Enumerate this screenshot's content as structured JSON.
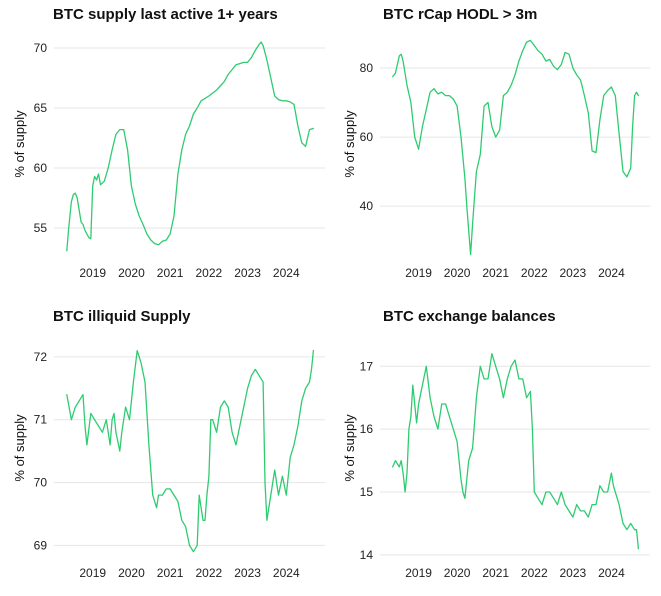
{
  "accent_color": "#2ecc71",
  "chart_data": [
    {
      "type": "line",
      "title": "BTC supply last active 1+ years",
      "ylabel": "% of supply",
      "xlim": [
        2018.0,
        2025.0
      ],
      "ylim": [
        52.5,
        71.5
      ],
      "yticks": [
        55,
        60,
        65,
        70
      ],
      "ytick_labels": [
        "55",
        "60",
        "65",
        "70"
      ],
      "xticks": [
        2019,
        2020,
        2021,
        2022,
        2023,
        2024
      ],
      "xtick_labels": [
        "2019",
        "2020",
        "2021",
        "2022",
        "2023",
        "2024"
      ],
      "series": [
        {
          "color": "#2ecc71",
          "x": [
            2018.33,
            2018.38,
            2018.45,
            2018.5,
            2018.55,
            2018.6,
            2018.7,
            2018.75,
            2018.8,
            2018.85,
            2018.9,
            2018.95,
            2019.0,
            2019.05,
            2019.1,
            2019.15,
            2019.2,
            2019.3,
            2019.4,
            2019.5,
            2019.6,
            2019.7,
            2019.8,
            2019.9,
            2020.0,
            2020.1,
            2020.2,
            2020.3,
            2020.4,
            2020.5,
            2020.6,
            2020.7,
            2020.8,
            2020.9,
            2021.0,
            2021.1,
            2021.2,
            2021.3,
            2021.4,
            2021.5,
            2021.6,
            2021.7,
            2021.8,
            2021.9,
            2022.0,
            2022.2,
            2022.4,
            2022.5,
            2022.6,
            2022.7,
            2022.8,
            2022.9,
            2023.0,
            2023.1,
            2023.2,
            2023.3,
            2023.35,
            2023.4,
            2023.5,
            2023.6,
            2023.7,
            2023.8,
            2023.9,
            2024.0,
            2024.1,
            2024.2,
            2024.3,
            2024.4,
            2024.5,
            2024.6,
            2024.7
          ],
          "y": [
            53.1,
            55.0,
            57.2,
            57.8,
            57.9,
            57.5,
            55.5,
            55.3,
            54.8,
            54.5,
            54.2,
            54.1,
            58.5,
            59.3,
            59.0,
            59.5,
            58.6,
            58.9,
            60.0,
            61.5,
            62.8,
            63.2,
            63.2,
            61.5,
            58.5,
            57.0,
            56.0,
            55.3,
            54.5,
            54.0,
            53.7,
            53.6,
            53.9,
            54.0,
            54.5,
            56.0,
            59.5,
            61.5,
            62.8,
            63.5,
            64.5,
            65.0,
            65.6,
            65.8,
            66.0,
            66.5,
            67.2,
            67.8,
            68.2,
            68.6,
            68.7,
            68.8,
            68.8,
            69.2,
            69.8,
            70.3,
            70.5,
            70.2,
            69.0,
            67.5,
            66.0,
            65.7,
            65.6,
            65.6,
            65.5,
            65.3,
            63.5,
            62.1,
            61.8,
            63.2,
            63.3
          ]
        }
      ]
    },
    {
      "type": "line",
      "title": "BTC rCap HODL > 3m",
      "ylabel": "% of supply",
      "xlim": [
        2018.0,
        2025.0
      ],
      "ylim": [
        25.0,
        91.0
      ],
      "yticks": [
        40,
        60,
        80
      ],
      "ytick_labels": [
        "40",
        "60",
        "80"
      ],
      "xticks": [
        2019,
        2020,
        2021,
        2022,
        2023,
        2024
      ],
      "xtick_labels": [
        "2019",
        "2020",
        "2021",
        "2022",
        "2023",
        "2024"
      ],
      "series": [
        {
          "color": "#2ecc71",
          "x": [
            2018.33,
            2018.4,
            2018.5,
            2018.55,
            2018.6,
            2018.7,
            2018.8,
            2018.9,
            2019.0,
            2019.1,
            2019.2,
            2019.3,
            2019.4,
            2019.5,
            2019.6,
            2019.7,
            2019.8,
            2019.9,
            2020.0,
            2020.1,
            2020.2,
            2020.25,
            2020.3,
            2020.35,
            2020.4,
            2020.5,
            2020.6,
            2020.7,
            2020.8,
            2020.9,
            2021.0,
            2021.1,
            2021.2,
            2021.3,
            2021.4,
            2021.5,
            2021.6,
            2021.7,
            2021.8,
            2021.9,
            2022.0,
            2022.1,
            2022.2,
            2022.3,
            2022.4,
            2022.5,
            2022.6,
            2022.7,
            2022.8,
            2022.9,
            2023.0,
            2023.1,
            2023.2,
            2023.3,
            2023.4,
            2023.5,
            2023.6,
            2023.7,
            2023.8,
            2023.9,
            2024.0,
            2024.1,
            2024.2,
            2024.3,
            2024.4,
            2024.5,
            2024.55,
            2024.6,
            2024.65,
            2024.7
          ],
          "y": [
            77.5,
            78.5,
            83.5,
            84.0,
            82.0,
            75.0,
            70.0,
            60.0,
            56.5,
            63.0,
            68.0,
            73.0,
            74.0,
            72.5,
            73.0,
            72.0,
            72.0,
            71.0,
            69.0,
            60.0,
            48.0,
            40.0,
            33.0,
            26.0,
            35.0,
            50.0,
            55.0,
            69.0,
            70.0,
            63.0,
            60.0,
            62.0,
            72.0,
            73.0,
            75.0,
            78.0,
            82.0,
            85.0,
            87.5,
            88.0,
            86.5,
            85.0,
            84.0,
            82.0,
            82.5,
            80.5,
            79.5,
            81.0,
            84.5,
            84.0,
            80.0,
            78.0,
            76.5,
            72.0,
            67.0,
            56.0,
            55.5,
            65.0,
            72.0,
            73.5,
            74.5,
            72.0,
            61.0,
            50.0,
            48.5,
            51.0,
            63.0,
            72.0,
            73.0,
            72.0
          ]
        }
      ]
    },
    {
      "type": "line",
      "title": "BTC illiquid Supply",
      "ylabel": "% of supply",
      "xlim": [
        2018.0,
        2025.0
      ],
      "ylim": [
        68.8,
        72.3
      ],
      "yticks": [
        69,
        70,
        71,
        72
      ],
      "ytick_labels": [
        "69",
        "70",
        "71",
        "72"
      ],
      "xticks": [
        2019,
        2020,
        2021,
        2022,
        2023,
        2024
      ],
      "xtick_labels": [
        "2019",
        "2020",
        "2021",
        "2022",
        "2023",
        "2024"
      ],
      "series": [
        {
          "color": "#2ecc71",
          "x": [
            2018.33,
            2018.45,
            2018.55,
            2018.65,
            2018.75,
            2018.8,
            2018.85,
            2018.95,
            2019.05,
            2019.15,
            2019.25,
            2019.35,
            2019.45,
            2019.5,
            2019.55,
            2019.6,
            2019.7,
            2019.75,
            2019.85,
            2019.95,
            2020.05,
            2020.15,
            2020.25,
            2020.35,
            2020.45,
            2020.55,
            2020.65,
            2020.7,
            2020.8,
            2020.9,
            2021.0,
            2021.1,
            2021.2,
            2021.3,
            2021.4,
            2021.5,
            2021.6,
            2021.7,
            2021.75,
            2021.8,
            2021.85,
            2021.9,
            2021.95,
            2022.0,
            2022.05,
            2022.1,
            2022.2,
            2022.3,
            2022.4,
            2022.5,
            2022.6,
            2022.7,
            2022.8,
            2022.9,
            2023.0,
            2023.1,
            2023.2,
            2023.3,
            2023.4,
            2023.45,
            2023.5,
            2023.6,
            2023.7,
            2023.8,
            2023.9,
            2024.0,
            2024.1,
            2024.2,
            2024.3,
            2024.4,
            2024.5,
            2024.6,
            2024.65,
            2024.7
          ],
          "y": [
            71.4,
            71.0,
            71.2,
            71.3,
            71.4,
            70.9,
            70.6,
            71.1,
            71.0,
            70.9,
            70.8,
            71.0,
            70.6,
            71.0,
            71.1,
            70.8,
            70.5,
            70.8,
            71.2,
            71.0,
            71.6,
            72.1,
            71.9,
            71.6,
            70.6,
            69.8,
            69.6,
            69.8,
            69.8,
            69.9,
            69.9,
            69.8,
            69.7,
            69.4,
            69.3,
            69.0,
            68.9,
            69.0,
            69.8,
            69.6,
            69.4,
            69.4,
            69.8,
            70.1,
            71.0,
            71.0,
            70.8,
            71.2,
            71.3,
            71.2,
            70.8,
            70.6,
            70.9,
            71.2,
            71.5,
            71.7,
            71.8,
            71.7,
            71.6,
            70.0,
            69.4,
            69.8,
            70.2,
            69.8,
            70.1,
            69.8,
            70.4,
            70.6,
            70.9,
            71.3,
            71.5,
            71.6,
            71.8,
            72.1
          ]
        }
      ]
    },
    {
      "type": "line",
      "title": "BTC exchange balances",
      "ylabel": "% of supply",
      "xlim": [
        2018.0,
        2025.0
      ],
      "ylim": [
        13.95,
        17.45
      ],
      "yticks": [
        14,
        15,
        16,
        17
      ],
      "ytick_labels": [
        "14",
        "15",
        "16",
        "17"
      ],
      "xticks": [
        2019,
        2020,
        2021,
        2022,
        2023,
        2024
      ],
      "xtick_labels": [
        "2019",
        "2020",
        "2021",
        "2022",
        "2023",
        "2024"
      ],
      "series": [
        {
          "color": "#2ecc71",
          "x": [
            2018.33,
            2018.4,
            2018.5,
            2018.55,
            2018.6,
            2018.65,
            2018.7,
            2018.75,
            2018.8,
            2018.85,
            2018.9,
            2018.95,
            2019.0,
            2019.1,
            2019.2,
            2019.3,
            2019.4,
            2019.5,
            2019.6,
            2019.7,
            2019.8,
            2019.9,
            2020.0,
            2020.1,
            2020.15,
            2020.2,
            2020.3,
            2020.4,
            2020.5,
            2020.6,
            2020.7,
            2020.8,
            2020.9,
            2021.0,
            2021.1,
            2021.2,
            2021.3,
            2021.4,
            2021.5,
            2021.6,
            2021.7,
            2021.8,
            2021.9,
            2021.95,
            2022.0,
            2022.1,
            2022.2,
            2022.3,
            2022.4,
            2022.5,
            2022.6,
            2022.7,
            2022.8,
            2022.9,
            2023.0,
            2023.1,
            2023.2,
            2023.3,
            2023.4,
            2023.5,
            2023.6,
            2023.7,
            2023.8,
            2023.9,
            2024.0,
            2024.05,
            2024.1,
            2024.2,
            2024.3,
            2024.4,
            2024.5,
            2024.6,
            2024.65,
            2024.7
          ],
          "y": [
            15.4,
            15.5,
            15.4,
            15.5,
            15.3,
            15.0,
            15.3,
            16.0,
            16.2,
            16.7,
            16.4,
            16.1,
            16.4,
            16.7,
            17.0,
            16.5,
            16.2,
            16.0,
            16.4,
            16.4,
            16.2,
            16.0,
            15.8,
            15.2,
            15.0,
            14.9,
            15.5,
            15.7,
            16.5,
            17.0,
            16.8,
            16.8,
            17.2,
            17.0,
            16.8,
            16.5,
            16.8,
            17.0,
            17.1,
            16.8,
            16.8,
            16.5,
            16.6,
            16.0,
            15.0,
            14.9,
            14.8,
            15.0,
            15.0,
            14.9,
            14.8,
            15.0,
            14.8,
            14.7,
            14.6,
            14.8,
            14.7,
            14.7,
            14.6,
            14.8,
            14.8,
            15.1,
            15.0,
            15.0,
            15.3,
            15.1,
            15.0,
            14.8,
            14.5,
            14.4,
            14.5,
            14.4,
            14.4,
            14.1
          ]
        }
      ]
    }
  ]
}
